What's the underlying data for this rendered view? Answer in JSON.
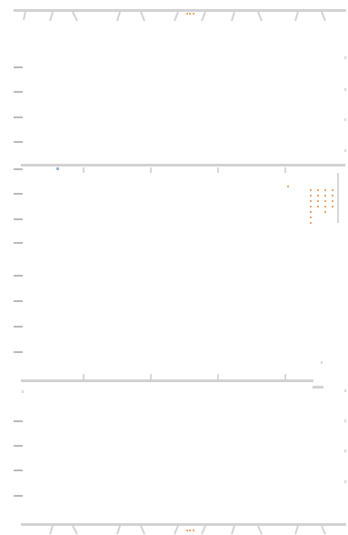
{
  "colors": {
    "background": "#ffffff",
    "stroke": "#cfcfcf",
    "tick": "#d7d7d7",
    "text": "#b9b9b9",
    "accent_orange": "#f2a36a",
    "accent_blue": "#8db3e6"
  },
  "icons": {
    "top_center": "tiny-markers-icon",
    "bottom_center": "tiny-markers-icon"
  }
}
